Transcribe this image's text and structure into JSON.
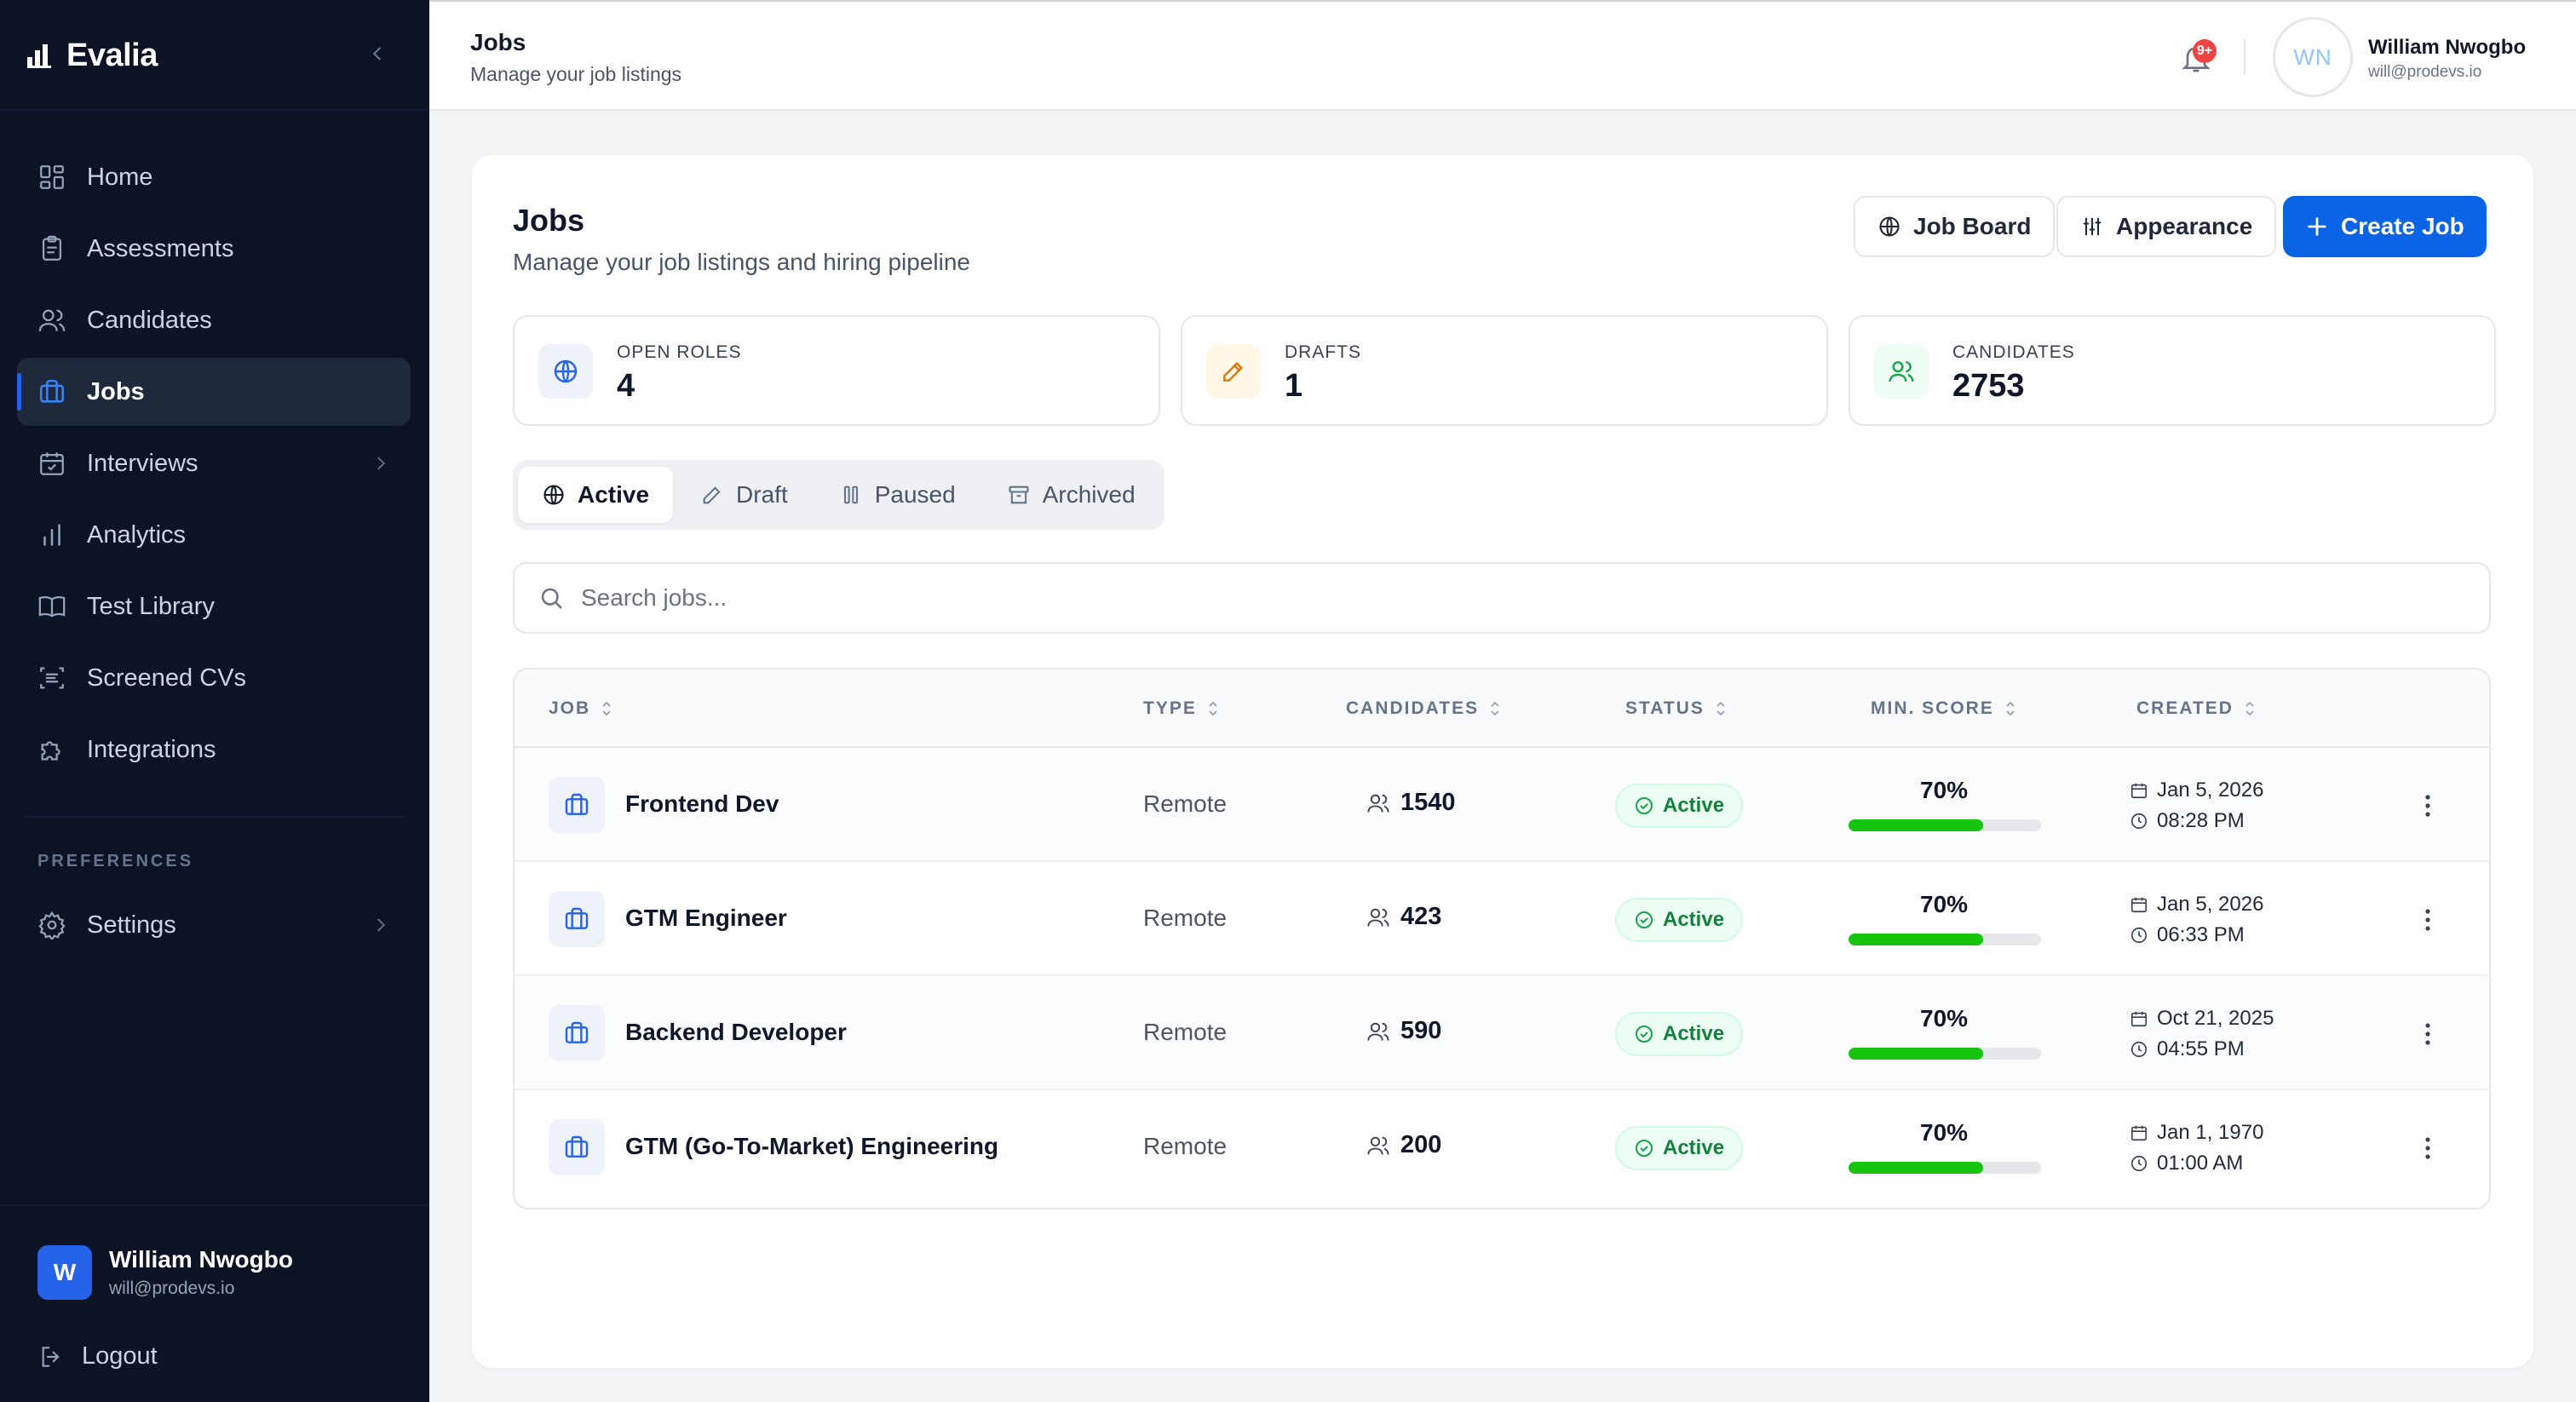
{
  "sidebar": {
    "brand": "Evalia",
    "items": [
      {
        "label": "Home",
        "icon": "grid-icon"
      },
      {
        "label": "Assessments",
        "icon": "clipboard-icon"
      },
      {
        "label": "Candidates",
        "icon": "users-icon"
      },
      {
        "label": "Jobs",
        "icon": "briefcase-icon",
        "active": true
      },
      {
        "label": "Interviews",
        "icon": "calendar-check-icon"
      },
      {
        "label": "Analytics",
        "icon": "bar-chart-icon"
      },
      {
        "label": "Test Library",
        "icon": "book-icon"
      },
      {
        "label": "Screened CVs",
        "icon": "scan-icon"
      },
      {
        "label": "Integrations",
        "icon": "puzzle-icon"
      }
    ],
    "preferences_label": "PREFERENCES",
    "settings_label": "Settings",
    "user": {
      "initial": "W",
      "name": "William Nwogbo",
      "email": "will@prodevs.io"
    },
    "logout_label": "Logout"
  },
  "topbar": {
    "title": "Jobs",
    "subtitle": "Manage your job listings",
    "notification_badge": "9+",
    "user": {
      "initials": "WN",
      "name": "William Nwogbo",
      "email": "will@prodevs.io"
    }
  },
  "main": {
    "title": "Jobs",
    "subtitle": "Manage your job listings and hiring pipeline",
    "buttons": {
      "job_board": "Job Board",
      "appearance": "Appearance",
      "create_job": "Create Job"
    },
    "stats": [
      {
        "label": "OPEN ROLES",
        "value": "4",
        "icon": "globe-icon"
      },
      {
        "label": "DRAFTS",
        "value": "1",
        "icon": "pencil-icon"
      },
      {
        "label": "CANDIDATES",
        "value": "2753",
        "icon": "users-icon"
      }
    ],
    "tabs": [
      {
        "label": "Active",
        "active": true
      },
      {
        "label": "Draft"
      },
      {
        "label": "Paused"
      },
      {
        "label": "Archived"
      }
    ],
    "search": {
      "placeholder": "Search jobs..."
    },
    "table": {
      "columns": [
        "JOB",
        "TYPE",
        "CANDIDATES",
        "STATUS",
        "MIN. SCORE",
        "CREATED"
      ],
      "rows": [
        {
          "title": "Frontend Dev",
          "type": "Remote",
          "candidates": "1540",
          "status": "Active",
          "min_score": "70%",
          "score_fraction": 0.7,
          "date": "Jan 5, 2026",
          "time": "08:28 PM"
        },
        {
          "title": "GTM Engineer",
          "type": "Remote",
          "candidates": "423",
          "status": "Active",
          "min_score": "70%",
          "score_fraction": 0.7,
          "date": "Jan 5, 2026",
          "time": "06:33 PM"
        },
        {
          "title": "Backend Developer",
          "type": "Remote",
          "candidates": "590",
          "status": "Active",
          "min_score": "70%",
          "score_fraction": 0.7,
          "date": "Oct 21, 2025",
          "time": "04:55 PM"
        },
        {
          "title": "GTM (Go-To-Market) Engineering",
          "type": "Remote",
          "candidates": "200",
          "status": "Active",
          "min_score": "70%",
          "score_fraction": 0.7,
          "date": "Jan 1, 1970",
          "time": "01:00 AM"
        }
      ]
    }
  },
  "colors": {
    "accent": "#0b63e5",
    "sidebar_bg": "#0b1324",
    "active_status": "#15803d",
    "score_bar": "#16c60c"
  }
}
